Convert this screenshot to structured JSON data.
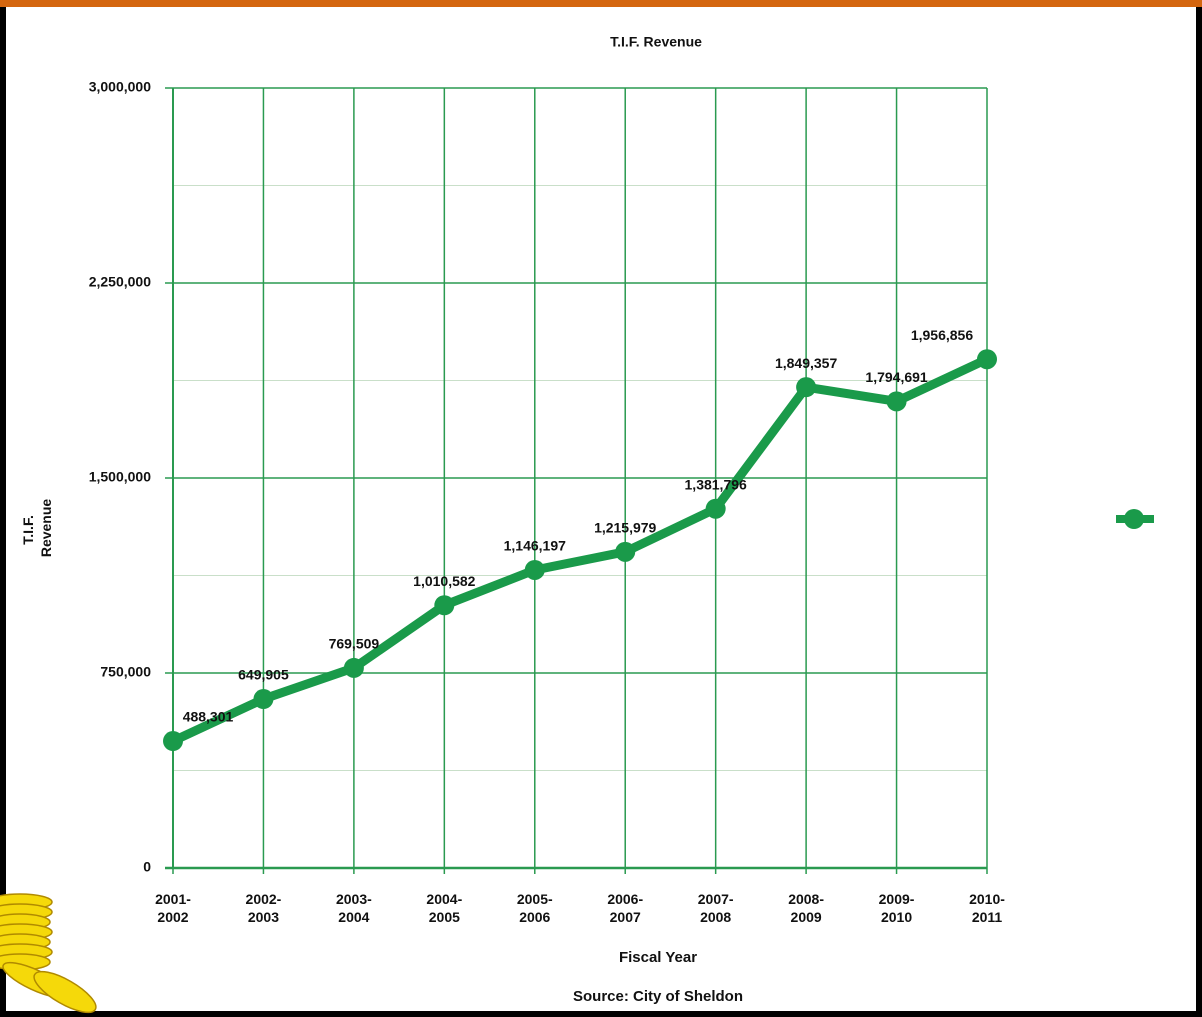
{
  "chart_data": {
    "type": "line",
    "title": "T.I.F. Revenue",
    "x_label": "Fiscal Year",
    "y_label": "T.I.F. Revenue",
    "source": "Source: City of Sheldon",
    "categories": [
      "2001-2002",
      "2002-2003",
      "2003-2004",
      "2004-2005",
      "2005-2006",
      "2006-2007",
      "2007-2008",
      "2008-2009",
      "2009-2010",
      "2010-2011"
    ],
    "series": [
      {
        "color": "#1a9a4a",
        "values": [
          488301,
          649905,
          769509,
          1010582,
          1146197,
          1215979,
          1381796,
          1849357,
          1794691,
          1956856
        ],
        "value_labels": [
          "488,301",
          "649,905",
          "769,509",
          "1,010,582",
          "1,146,197",
          "1,215,979",
          "1,381,796",
          "1,849,357",
          "1,794,691",
          "1,956,856"
        ]
      }
    ],
    "ylim": [
      0,
      3000000
    ],
    "yticks": [
      {
        "value": 0,
        "label": "0"
      },
      {
        "value": 750000,
        "label": "750,000"
      },
      {
        "value": 1500000,
        "label": "1,500,000"
      },
      {
        "value": 2250000,
        "label": "2,250,000"
      },
      {
        "value": 3000000,
        "label": "3,000,000"
      }
    ],
    "grid": true
  }
}
